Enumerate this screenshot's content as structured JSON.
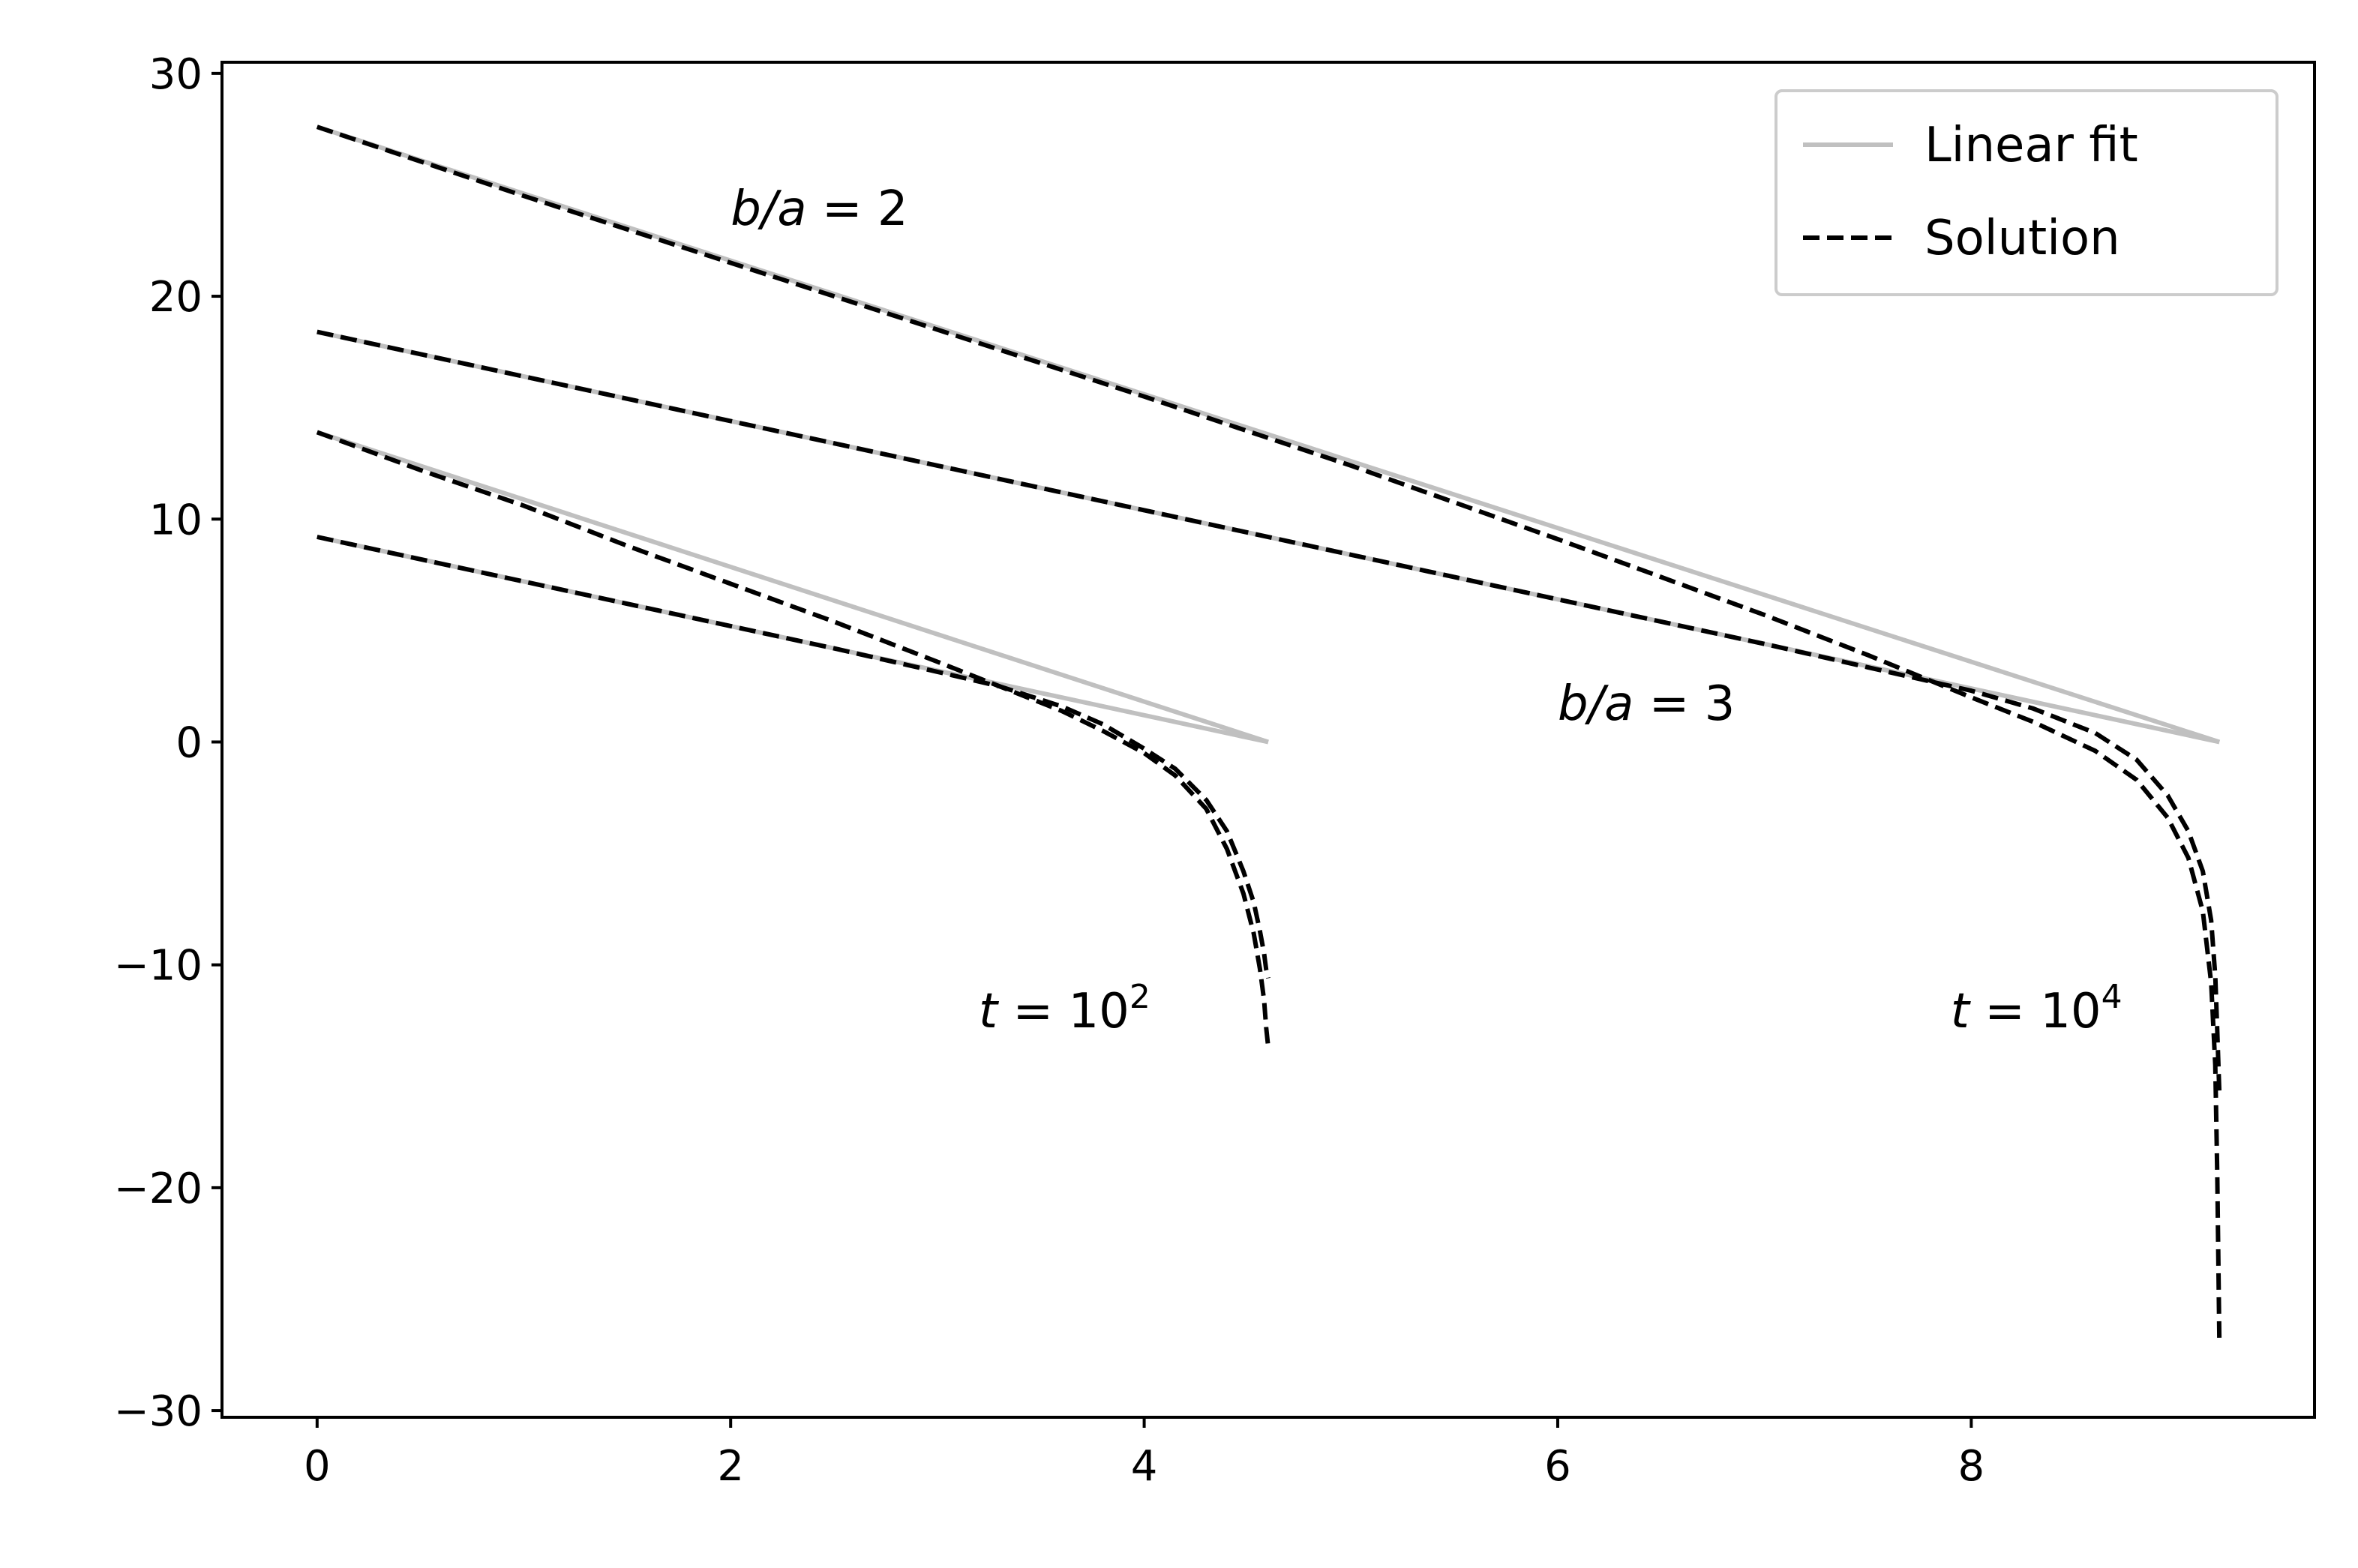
{
  "chart_data": {
    "type": "line",
    "title": "",
    "xlabel": "",
    "ylabel": "",
    "xlim": [
      -0.46,
      9.66
    ],
    "ylim": [
      -30.3,
      30.5
    ],
    "grid": false,
    "legend_position": "top-right",
    "xticks": [
      0,
      2,
      4,
      6,
      8
    ],
    "xtick_labels": [
      "0",
      "2",
      "4",
      "6",
      "8"
    ],
    "yticks": [
      -30,
      -20,
      -10,
      0,
      10,
      20,
      30
    ],
    "ytick_labels": [
      "−30",
      "−20",
      "−10",
      "0",
      "10",
      "20",
      "30"
    ],
    "legend": [
      {
        "label": "Linear fit",
        "color": "#c0c0c0",
        "style": "solid"
      },
      {
        "label": "Solution",
        "color": "#000000",
        "style": "dashed"
      }
    ],
    "annotations": [
      {
        "lhs": "b/a",
        "eq": " = ",
        "rhs": "2",
        "exp": "",
        "x": 2.0,
        "y": 23.2
      },
      {
        "lhs": "b/a",
        "eq": " = ",
        "rhs": "3",
        "exp": "",
        "x": 6.0,
        "y": 1.0
      },
      {
        "lhs": "t",
        "eq": " = ",
        "rhs": "10",
        "exp": "2",
        "x": 3.2,
        "y": -12.8
      },
      {
        "lhs": "t",
        "eq": " = ",
        "rhs": "10",
        "exp": "4",
        "x": 7.9,
        "y": -12.8
      }
    ],
    "series": [
      {
        "role": "fit",
        "color": "#c0c0c0",
        "style": "solid",
        "x": [
          0,
          4.6
        ],
        "y": [
          9.2,
          0
        ]
      },
      {
        "role": "fit",
        "color": "#c0c0c0",
        "style": "solid",
        "x": [
          0,
          4.6
        ],
        "y": [
          13.9,
          0
        ]
      },
      {
        "role": "fit",
        "color": "#c0c0c0",
        "style": "solid",
        "x": [
          0,
          9.2
        ],
        "y": [
          18.4,
          0
        ]
      },
      {
        "role": "fit",
        "color": "#c0c0c0",
        "style": "solid",
        "x": [
          0,
          9.2
        ],
        "y": [
          27.6,
          0
        ]
      },
      {
        "role": "solution",
        "color": "#000000",
        "style": "dashed",
        "x": [
          0,
          0.5,
          1.0,
          1.5,
          2.0,
          2.5,
          3.0,
          3.3,
          3.6,
          3.8,
          4.0,
          4.15,
          4.3,
          4.4,
          4.48,
          4.53,
          4.56,
          4.58,
          4.59,
          4.6
        ],
        "y": [
          9.2,
          8.2,
          7.2,
          6.2,
          5.2,
          4.2,
          3.15,
          2.5,
          1.6,
          0.8,
          -0.3,
          -1.2,
          -2.6,
          -4.0,
          -5.8,
          -7.2,
          -8.5,
          -9.5,
          -10.2,
          -10.6
        ]
      },
      {
        "role": "solution",
        "color": "#000000",
        "style": "dashed",
        "x": [
          0,
          0.5,
          1.0,
          1.5,
          2.0,
          2.5,
          3.0,
          3.3,
          3.6,
          3.8,
          4.0,
          4.15,
          4.3,
          4.4,
          4.48,
          4.53,
          4.56,
          4.58,
          4.59,
          4.6
        ],
        "y": [
          13.9,
          12.2,
          10.6,
          8.8,
          7.1,
          5.4,
          3.6,
          2.5,
          1.4,
          0.5,
          -0.5,
          -1.5,
          -3.0,
          -4.8,
          -6.8,
          -8.6,
          -10.2,
          -11.6,
          -12.8,
          -13.7
        ]
      },
      {
        "role": "solution",
        "color": "#000000",
        "style": "dashed",
        "x": [
          0,
          1,
          2,
          3,
          4,
          5,
          6,
          7,
          7.5,
          8.0,
          8.3,
          8.6,
          8.8,
          8.95,
          9.05,
          9.12,
          9.16,
          9.18,
          9.19,
          9.2
        ],
        "y": [
          18.4,
          16.4,
          14.4,
          12.4,
          10.4,
          8.4,
          6.4,
          4.4,
          3.35,
          2.3,
          1.5,
          0.4,
          -0.8,
          -2.4,
          -4.0,
          -5.8,
          -8.0,
          -10.5,
          -13.0,
          -15.8
        ]
      },
      {
        "role": "solution",
        "color": "#000000",
        "style": "dashed",
        "x": [
          0,
          1,
          2,
          3,
          4,
          5,
          6,
          6.5,
          7,
          7.5,
          8.0,
          8.3,
          8.6,
          8.8,
          8.95,
          9.05,
          9.12,
          9.16,
          9.18,
          9.19,
          9.2
        ],
        "y": [
          27.6,
          24.5,
          21.5,
          18.5,
          15.5,
          12.4,
          9.1,
          7.4,
          5.7,
          3.9,
          2.0,
          0.9,
          -0.4,
          -1.7,
          -3.4,
          -5.2,
          -7.6,
          -10.8,
          -14.5,
          -19.5,
          -27.0
        ]
      }
    ]
  }
}
